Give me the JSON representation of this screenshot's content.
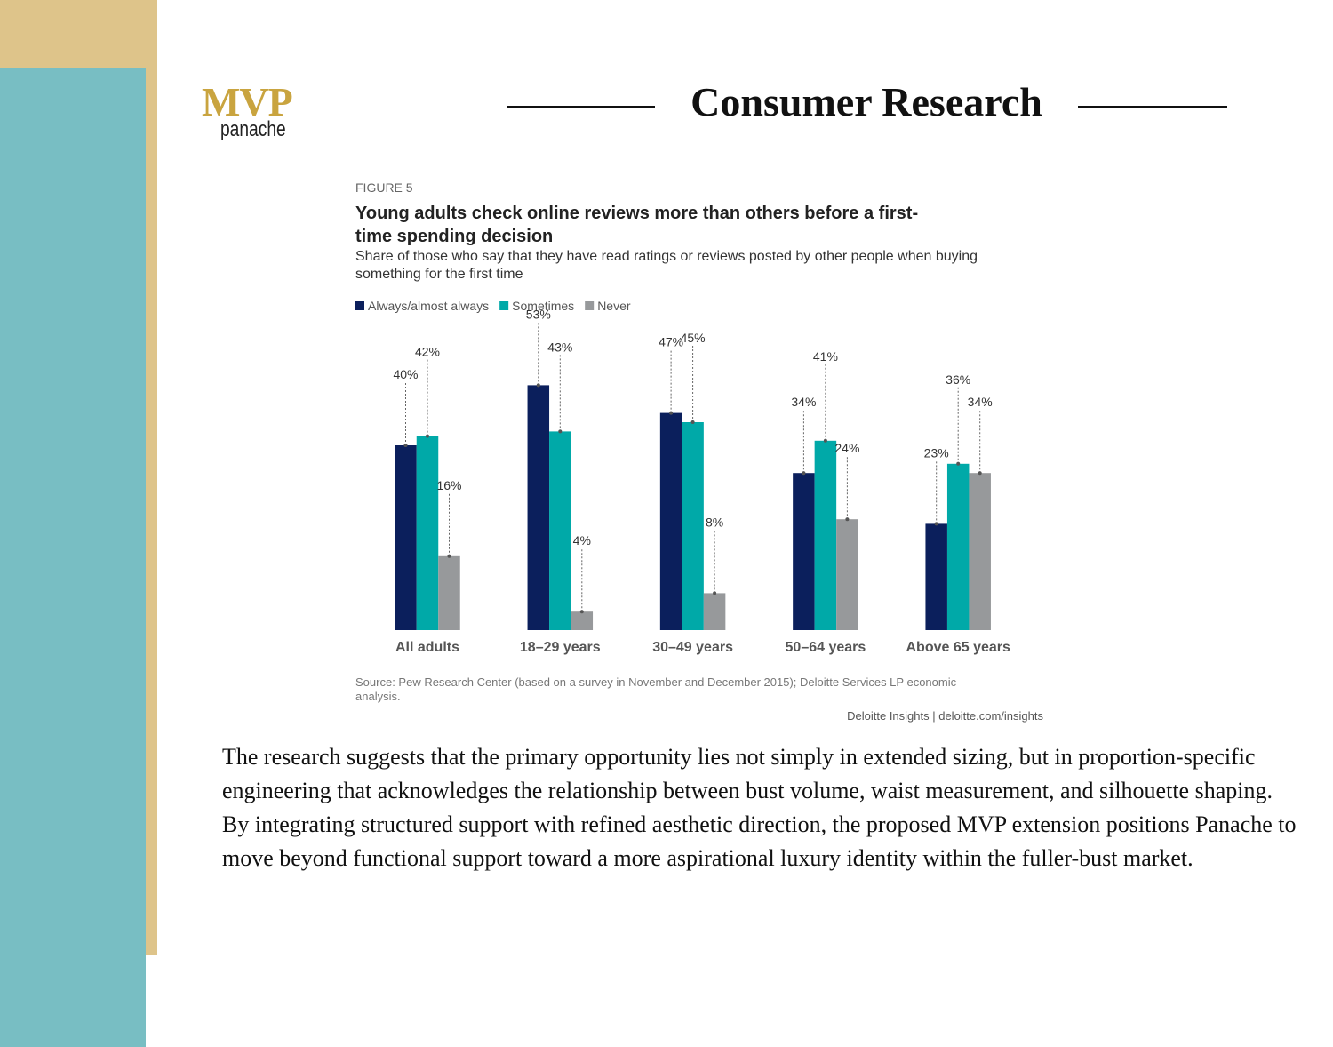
{
  "header": {
    "logo": "MVP",
    "logo_sub": "panache",
    "title": "Consumer Research"
  },
  "chart_data": {
    "type": "bar",
    "label": "FIGURE 5",
    "title": "Young adults check online reviews more than others before a first-time spending decision",
    "subtitle": "Share of those who say that they have read ratings or reviews posted by other people when buying something for the first time",
    "categories": [
      "All adults",
      "18–29 years",
      "30–49 years",
      "50–64 years",
      "Above 65 years"
    ],
    "series": [
      {
        "name": "Always/almost always",
        "color": "#0b1f5c",
        "values": [
          40,
          53,
          47,
          34,
          23
        ],
        "value_labels": [
          "40%",
          "53%",
          "47%",
          "34%",
          "23%"
        ]
      },
      {
        "name": "Sometimes",
        "color": "#00a9a8",
        "values": [
          42,
          43,
          45,
          41,
          36
        ],
        "value_labels": [
          "42%",
          "43%",
          "45%",
          "41%",
          "36%"
        ]
      },
      {
        "name": "Never",
        "color": "#97999b",
        "values": [
          16,
          4,
          8,
          24,
          34
        ],
        "value_labels": [
          "16%",
          "4%",
          "8%",
          "24%",
          "34%"
        ]
      }
    ],
    "legend": "top-left",
    "source": "Source: Pew Research Center (based on a survey in November and December 2015); Deloitte Services LP economic analysis.",
    "credit": "Deloitte Insights | deloitte.com/insights"
  },
  "body": {
    "paragraphs": [
      "The research suggests that the primary opportunity lies not simply in extended sizing, but in proportion-specific engineering that acknowledges the relationship between bust volume, waist measurement, and silhouette shaping.",
      "By integrating structured support with refined aesthetic direction, the proposed MVP extension positions Panache to move beyond functional support toward a more aspirational luxury identity within the fuller-bust market."
    ]
  }
}
